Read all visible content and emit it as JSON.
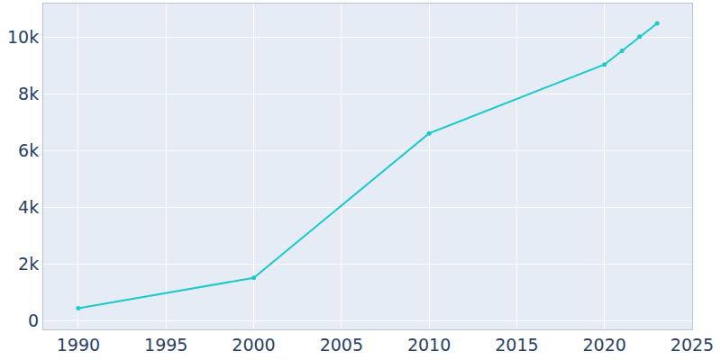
{
  "chart_data": {
    "type": "line",
    "x": [
      1990,
      2000,
      2010,
      2020,
      2021,
      2022,
      2023
    ],
    "values": [
      450,
      1520,
      6620,
      9050,
      9530,
      10030,
      10500
    ],
    "color": "#1dc9c9",
    "marker": "circle",
    "xlim": [
      1988,
      2025
    ],
    "xticks": [
      1990,
      1995,
      2000,
      2005,
      2010,
      2015,
      2020,
      2025
    ],
    "ylim": [
      -300,
      11200
    ],
    "yticks": [
      0,
      {
        "value": 2000,
        "label": "2k"
      },
      {
        "value": 4000,
        "label": "4k"
      },
      {
        "value": 6000,
        "label": "6k"
      },
      {
        "value": 8000,
        "label": "8k"
      },
      {
        "value": 10000,
        "label": "10k"
      }
    ],
    "grid": true
  }
}
